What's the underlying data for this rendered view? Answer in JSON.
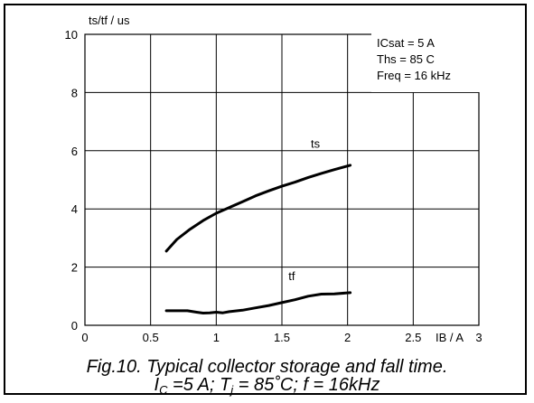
{
  "chart_data": {
    "type": "line",
    "ylabel": "ts/tf / us",
    "xlabel": "IB / A",
    "xlim": [
      0,
      3
    ],
    "ylim": [
      0,
      10
    ],
    "x_ticks": [
      "0",
      "0.5",
      "1",
      "1.5",
      "2",
      "2.5",
      "3"
    ],
    "y_ticks": [
      "0",
      "2",
      "4",
      "6",
      "8",
      "10"
    ],
    "grid": true,
    "annotations": [
      "ICsat = 5 A",
      "Ths = 85 C",
      "Freq = 16 kHz"
    ],
    "series": [
      {
        "name": "ts",
        "x": [
          0.62,
          0.7,
          0.8,
          0.9,
          1.0,
          1.1,
          1.2,
          1.3,
          1.4,
          1.5,
          1.6,
          1.7,
          1.8,
          1.9,
          2.02
        ],
        "y": [
          2.55,
          2.95,
          3.3,
          3.6,
          3.85,
          4.05,
          4.25,
          4.45,
          4.62,
          4.78,
          4.92,
          5.08,
          5.22,
          5.35,
          5.5
        ]
      },
      {
        "name": "tf",
        "x": [
          0.62,
          0.7,
          0.78,
          0.85,
          0.9,
          0.95,
          1.0,
          1.05,
          1.1,
          1.2,
          1.3,
          1.4,
          1.5,
          1.6,
          1.7,
          1.8,
          1.9,
          2.02
        ],
        "y": [
          0.5,
          0.5,
          0.5,
          0.45,
          0.42,
          0.43,
          0.45,
          0.43,
          0.47,
          0.52,
          0.6,
          0.68,
          0.78,
          0.88,
          1.0,
          1.07,
          1.08,
          1.12
        ]
      }
    ]
  },
  "caption": {
    "line1": "Fig.10.   Typical collector storage and fall time.",
    "line2": {
      "i": "I",
      "i_sub": "C",
      "mid1": " =5 A; T",
      "t_sub": "j",
      "mid2": " = 85˚C; f = 16kHz"
    }
  }
}
